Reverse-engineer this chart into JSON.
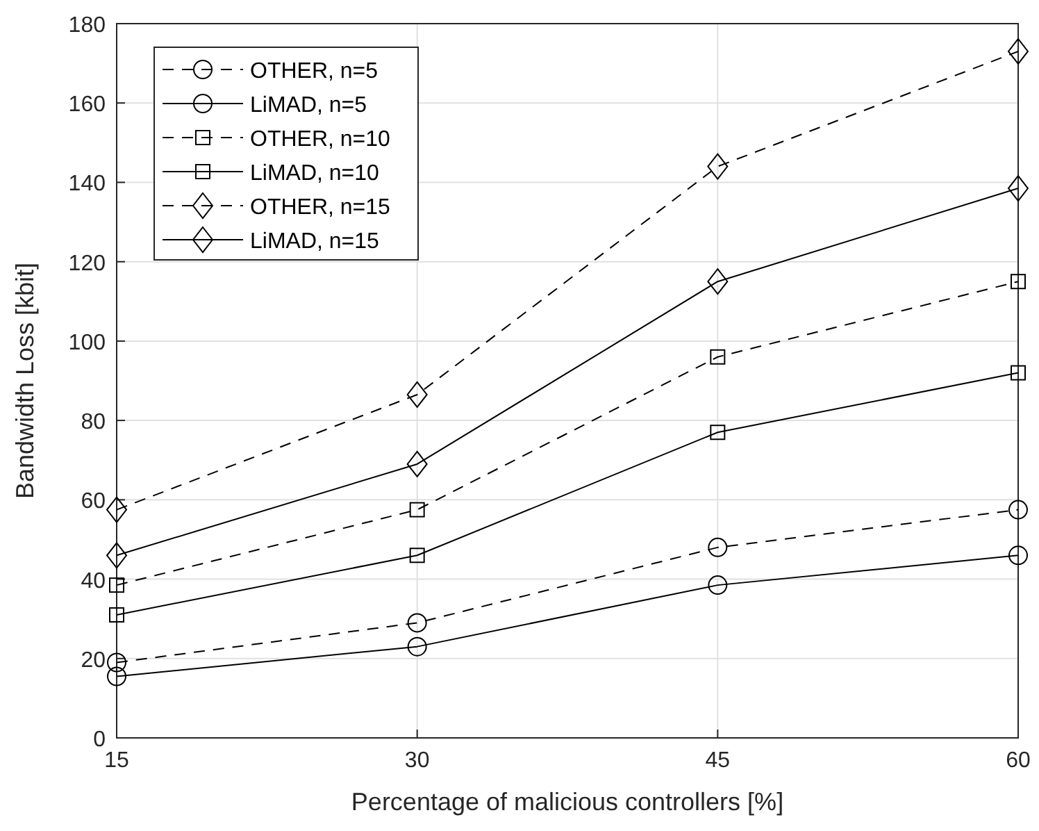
{
  "chart_data": {
    "type": "line",
    "xlabel": "Percentage of malicious controllers [%]",
    "ylabel": "Bandwidth Loss [kbit]",
    "x": [
      15,
      30,
      45,
      60
    ],
    "xlim": [
      15,
      60
    ],
    "xticks": [
      15,
      30,
      45,
      60
    ],
    "ylim": [
      0,
      180
    ],
    "yticks": [
      0,
      20,
      40,
      60,
      80,
      100,
      120,
      140,
      160,
      180
    ],
    "grid": true,
    "legend": "top left",
    "series": [
      {
        "name": "OTHER, n=5",
        "color": "#000000",
        "marker": "circle",
        "line_style": "dashed",
        "values": [
          19,
          29,
          48,
          57.5
        ]
      },
      {
        "name": "LiMAD, n=5",
        "color": "#000000",
        "marker": "circle",
        "line_style": "solid",
        "values": [
          15.5,
          23,
          38.5,
          46
        ]
      },
      {
        "name": "OTHER, n=10",
        "color": "#000000",
        "marker": "square",
        "line_style": "dashed",
        "values": [
          38.5,
          57.5,
          96,
          115
        ]
      },
      {
        "name": "LiMAD, n=10",
        "color": "#000000",
        "marker": "square",
        "line_style": "solid",
        "values": [
          31,
          46,
          77,
          92
        ]
      },
      {
        "name": "OTHER, n=15",
        "color": "#000000",
        "marker": "diamond",
        "line_style": "dashed",
        "values": [
          57.5,
          86.5,
          144,
          173
        ]
      },
      {
        "name": "LiMAD, n=15",
        "color": "#000000",
        "marker": "diamond",
        "line_style": "solid",
        "values": [
          46,
          69,
          115,
          138.5
        ]
      }
    ]
  }
}
